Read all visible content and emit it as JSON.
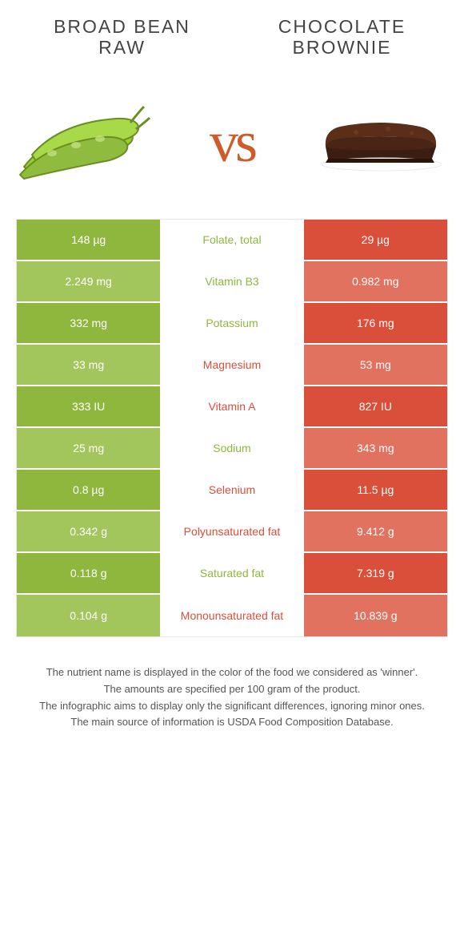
{
  "titles": {
    "left": "BROAD BEAN\nRAW",
    "right": "CHOCOLATE\nBROWNIE"
  },
  "vs_label": "vs",
  "colors": {
    "left_main": "#8fb73e",
    "left_alt": "#a3c65c",
    "right_main": "#d94f3a",
    "right_alt": "#e0725f",
    "label_left_text": "#8fb73e",
    "label_right_text": "#d94f3a",
    "vs_text": "#cf5a2a",
    "title_text": "#444444",
    "footer_text": "#555555",
    "border": "#e6e6e6",
    "background": "#ffffff"
  },
  "rows": [
    {
      "left": "148 µg",
      "label": "Folate, total",
      "right": "29 µg",
      "winner": "left"
    },
    {
      "left": "2.249 mg",
      "label": "Vitamin B3",
      "right": "0.982 mg",
      "winner": "left"
    },
    {
      "left": "332 mg",
      "label": "Potassium",
      "right": "176 mg",
      "winner": "left"
    },
    {
      "left": "33 mg",
      "label": "Magnesium",
      "right": "53 mg",
      "winner": "right"
    },
    {
      "left": "333 IU",
      "label": "Vitamin A",
      "right": "827 IU",
      "winner": "right"
    },
    {
      "left": "25 mg",
      "label": "Sodium",
      "right": "343 mg",
      "winner": "left"
    },
    {
      "left": "0.8 µg",
      "label": "Selenium",
      "right": "11.5 µg",
      "winner": "right"
    },
    {
      "left": "0.342 g",
      "label": "Polyunsaturated fat",
      "right": "9.412 g",
      "winner": "right"
    },
    {
      "left": "0.118 g",
      "label": "Saturated fat",
      "right": "7.319 g",
      "winner": "left"
    },
    {
      "left": "0.104 g",
      "label": "Monounsaturated fat",
      "right": "10.839 g",
      "winner": "right"
    }
  ],
  "footer": [
    "The nutrient name is displayed in the color of the food we considered as 'winner'.",
    "The amounts are specified per 100 gram of the product.",
    "The infographic aims to display only the significant differences, ignoring minor ones.",
    "The main source of information is USDA Food Composition Database."
  ]
}
